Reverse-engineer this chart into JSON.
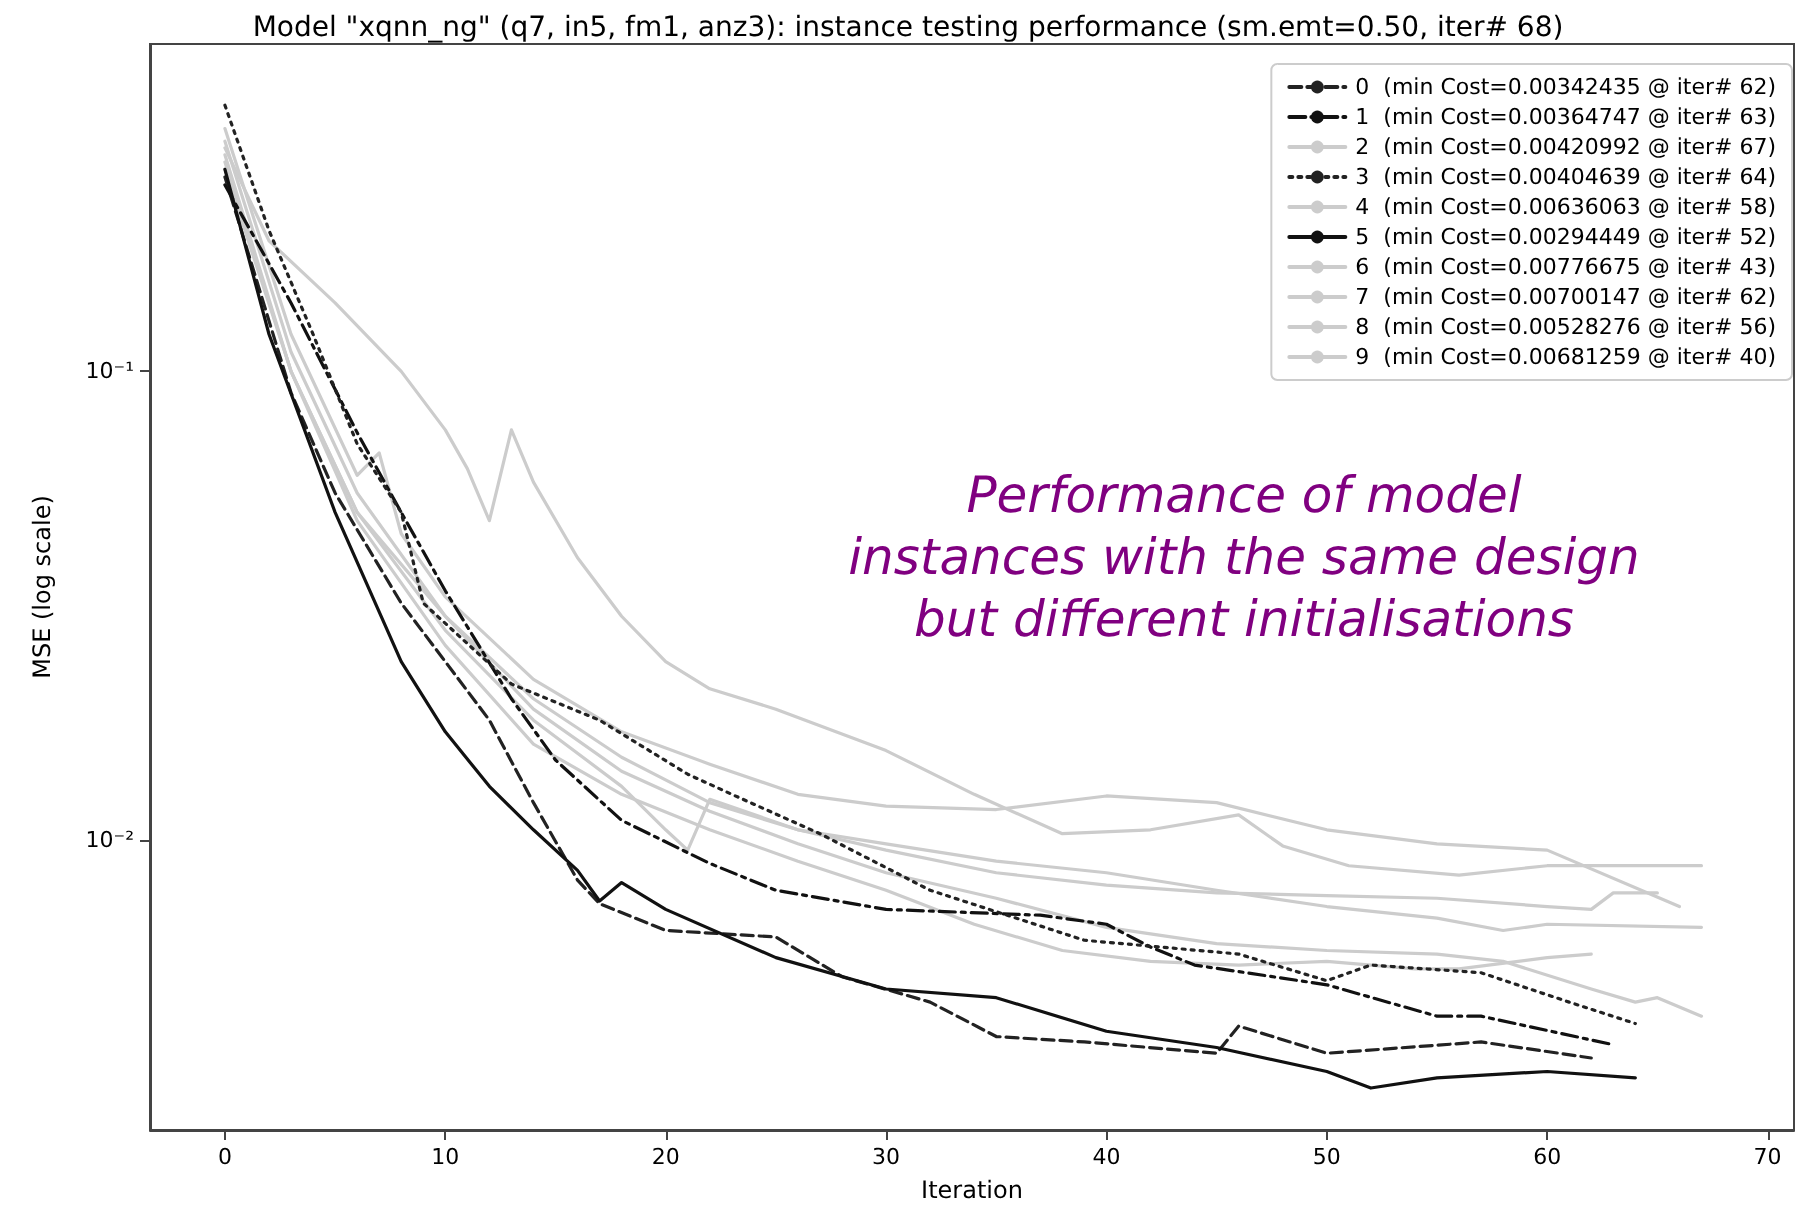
{
  "chart_data": {
    "type": "line",
    "title": "Model \"xqnn_ng\" (q7, in5, fm1, anz3): instance testing performance (sm.emt=0.50, iter# 68)",
    "xlabel": "Iteration",
    "ylabel": "MSE (log scale)",
    "annotations": [
      "Performance of model\ninstances with the same design\nbut different initialisations"
    ],
    "log": "y",
    "grid": false,
    "legend": "top right",
    "marker": "none",
    "xlim": [
      -3.4,
      71.2
    ],
    "xticks": [
      0,
      10,
      20,
      30,
      40,
      50,
      60,
      70
    ],
    "ylim": [
      0.0024,
      0.5
    ],
    "yticks": [
      {
        "value": 0.1,
        "label": "10⁻¹"
      },
      {
        "value": 0.01,
        "label": "10⁻²"
      }
    ],
    "series": [
      {
        "name": "0  (min Cost=0.00342435 @ iter# 62)",
        "color": "#222222",
        "line_style": "dashed",
        "x": [
          0,
          3,
          5,
          8,
          10,
          12,
          14,
          16,
          17,
          20,
          25,
          28,
          32,
          35,
          39,
          45,
          46,
          50,
          57,
          62
        ],
        "values": [
          0.26,
          0.09,
          0.055,
          0.032,
          0.024,
          0.018,
          0.012,
          0.0082,
          0.0073,
          0.0064,
          0.0062,
          0.0051,
          0.0045,
          0.0038,
          0.0037,
          0.0035,
          0.004,
          0.0035,
          0.0037,
          0.00342
        ]
      },
      {
        "name": "1  (min Cost=0.00364747 @ iter# 63)",
        "color": "#111111",
        "line_style": "dashdot",
        "x": [
          0,
          3,
          6,
          8,
          10,
          13,
          15,
          18,
          22,
          25,
          30,
          37,
          40,
          42,
          44,
          50,
          55,
          57,
          63
        ],
        "values": [
          0.25,
          0.14,
          0.074,
          0.05,
          0.034,
          0.02,
          0.0148,
          0.011,
          0.0089,
          0.0078,
          0.0071,
          0.0069,
          0.0066,
          0.0059,
          0.0054,
          0.0049,
          0.0042,
          0.0042,
          0.00365
        ]
      },
      {
        "name": "2  (min Cost=0.00420992 @ iter# 67)",
        "color": "#cccccc",
        "line_style": "solid",
        "x": [
          0,
          3,
          6,
          10,
          14,
          18,
          22,
          26,
          30,
          35,
          40,
          45,
          50,
          55,
          58,
          62,
          64,
          65,
          67
        ],
        "values": [
          0.31,
          0.11,
          0.055,
          0.03,
          0.019,
          0.014,
          0.0115,
          0.0098,
          0.0085,
          0.0075,
          0.0065,
          0.006,
          0.0058,
          0.0057,
          0.0055,
          0.0048,
          0.0045,
          0.0046,
          0.0042
        ]
      },
      {
        "name": "3  (min Cost=0.00404639 @ iter# 64)",
        "color": "#222222",
        "line_style": "dotted",
        "x": [
          0,
          2,
          4,
          6,
          8,
          9,
          13,
          17,
          21,
          23,
          27,
          32,
          39,
          46,
          50,
          52,
          57,
          61,
          64
        ],
        "values": [
          0.37,
          0.2,
          0.12,
          0.07,
          0.05,
          0.032,
          0.0215,
          0.018,
          0.0138,
          0.0125,
          0.0103,
          0.0078,
          0.0061,
          0.0057,
          0.005,
          0.0054,
          0.0052,
          0.0045,
          0.00405
        ]
      },
      {
        "name": "4  (min Cost=0.00636063 @ iter# 58)",
        "color": "#cccccc",
        "line_style": "solid",
        "x": [
          0,
          3,
          6,
          10,
          14,
          18,
          20,
          21,
          22,
          26,
          30,
          35,
          40,
          45,
          50,
          55,
          58,
          60,
          67
        ],
        "values": [
          0.28,
          0.1,
          0.05,
          0.028,
          0.018,
          0.013,
          0.0105,
          0.0095,
          0.0122,
          0.0105,
          0.0098,
          0.009,
          0.0085,
          0.0078,
          0.0072,
          0.0068,
          0.0064,
          0.0066,
          0.0065
        ]
      },
      {
        "name": "5  (min Cost=0.00294449 @ iter# 52)",
        "color": "#111111",
        "line_style": "solid",
        "x": [
          0,
          2,
          5,
          8,
          10,
          12,
          14,
          16,
          17,
          18,
          20,
          25,
          30,
          35,
          40,
          45,
          50,
          52,
          55,
          60,
          64
        ],
        "values": [
          0.27,
          0.12,
          0.05,
          0.024,
          0.017,
          0.013,
          0.0105,
          0.0086,
          0.0074,
          0.0081,
          0.0071,
          0.0056,
          0.0048,
          0.0046,
          0.0039,
          0.0036,
          0.0032,
          0.00295,
          0.0031,
          0.0032,
          0.0031
        ]
      },
      {
        "name": "6  (min Cost=0.00776675 @ iter# 43)",
        "color": "#cccccc",
        "line_style": "solid",
        "x": [
          0,
          2,
          5,
          8,
          10,
          11,
          12,
          13,
          14,
          16,
          18,
          20,
          22,
          25,
          30,
          34,
          38,
          42,
          46,
          48,
          51,
          56,
          60,
          67
        ],
        "values": [
          0.3,
          0.19,
          0.14,
          0.1,
          0.075,
          0.062,
          0.048,
          0.075,
          0.058,
          0.04,
          0.03,
          0.024,
          0.021,
          0.019,
          0.0155,
          0.0125,
          0.0103,
          0.0105,
          0.0113,
          0.0097,
          0.0088,
          0.0084,
          0.0088,
          0.0088
        ]
      },
      {
        "name": "7  (min Cost=0.00700147 @ iter# 62)",
        "color": "#cccccc",
        "line_style": "solid",
        "x": [
          0,
          3,
          6,
          10,
          14,
          18,
          22,
          26,
          30,
          35,
          40,
          45,
          50,
          55,
          60,
          62,
          63,
          65
        ],
        "values": [
          0.27,
          0.1,
          0.05,
          0.03,
          0.02,
          0.015,
          0.012,
          0.0105,
          0.0095,
          0.0085,
          0.008,
          0.0077,
          0.0076,
          0.0075,
          0.0072,
          0.0071,
          0.0077,
          0.0077
        ]
      },
      {
        "name": "8  (min Cost=0.00528276 @ iter# 56)",
        "color": "#cccccc",
        "line_style": "solid",
        "x": [
          0,
          3,
          6,
          10,
          14,
          18,
          22,
          26,
          30,
          34,
          38,
          42,
          46,
          50,
          54,
          56,
          60,
          62
        ],
        "values": [
          0.29,
          0.1,
          0.048,
          0.026,
          0.016,
          0.0125,
          0.0105,
          0.009,
          0.0078,
          0.0066,
          0.0058,
          0.0055,
          0.0054,
          0.0055,
          0.0053,
          0.0053,
          0.0056,
          0.0057
        ]
      },
      {
        "name": "9  (min Cost=0.00681259 @ iter# 40)",
        "color": "#cccccc",
        "line_style": "solid",
        "x": [
          0,
          3,
          6,
          7,
          8,
          10,
          14,
          18,
          22,
          26,
          30,
          35,
          40,
          45,
          50,
          55,
          60,
          66
        ],
        "values": [
          0.33,
          0.12,
          0.06,
          0.067,
          0.045,
          0.033,
          0.022,
          0.017,
          0.0145,
          0.0125,
          0.0118,
          0.0116,
          0.0124,
          0.012,
          0.0105,
          0.0098,
          0.0095,
          0.0072
        ]
      }
    ]
  }
}
